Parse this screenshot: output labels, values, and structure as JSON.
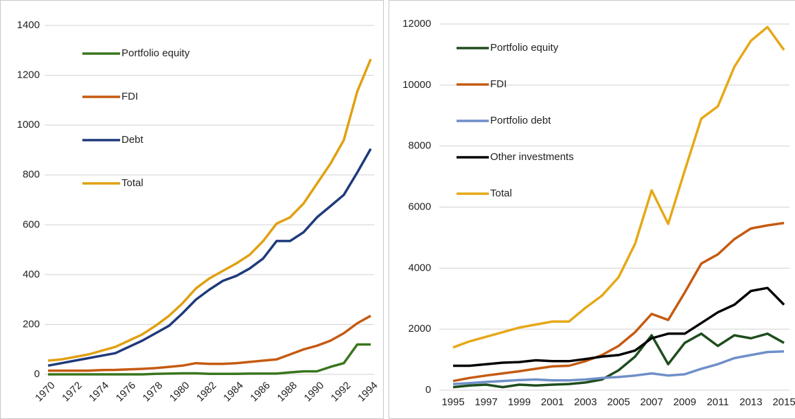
{
  "chart_data": [
    {
      "type": "line",
      "x": [
        1970,
        1971,
        1972,
        1973,
        1974,
        1975,
        1976,
        1977,
        1978,
        1979,
        1980,
        1981,
        1982,
        1983,
        1984,
        1985,
        1986,
        1987,
        1988,
        1989,
        1990,
        1991,
        1992,
        1993,
        1994
      ],
      "xlim": [
        1970,
        1994
      ],
      "xticks": [
        1970,
        1972,
        1974,
        1976,
        1978,
        1980,
        1982,
        1984,
        1986,
        1988,
        1990,
        1992,
        1994
      ],
      "ylim": [
        0,
        1400
      ],
      "yticks": [
        0,
        200,
        400,
        600,
        800,
        1000,
        1200,
        1400
      ],
      "grid": true,
      "legend": "upper left",
      "series": [
        {
          "name": "Portfolio equity",
          "color": "#38761d",
          "values": [
            0,
            0,
            0,
            0,
            0,
            0,
            0,
            0,
            2,
            3,
            4,
            4,
            2,
            2,
            2,
            3,
            3,
            3,
            8,
            12,
            12,
            30,
            45,
            120,
            120
          ]
        },
        {
          "name": "FDI",
          "color": "#c55a11",
          "values": [
            15,
            15,
            15,
            15,
            17,
            18,
            20,
            22,
            25,
            30,
            35,
            45,
            42,
            42,
            45,
            50,
            55,
            60,
            80,
            100,
            115,
            135,
            165,
            205,
            235
          ]
        },
        {
          "name": "Debt",
          "color": "#1f3a7a",
          "values": [
            35,
            45,
            55,
            65,
            75,
            85,
            110,
            135,
            165,
            195,
            245,
            300,
            340,
            375,
            395,
            425,
            465,
            535,
            535,
            570,
            630,
            675,
            720,
            810,
            905
          ]
        },
        {
          "name": "Total",
          "color": "#e0a010",
          "values": [
            55,
            60,
            70,
            80,
            95,
            110,
            135,
            160,
            195,
            235,
            285,
            345,
            385,
            415,
            445,
            480,
            535,
            605,
            630,
            685,
            765,
            845,
            940,
            1135,
            1265
          ]
        }
      ]
    },
    {
      "type": "line",
      "x": [
        1995,
        1996,
        1997,
        1998,
        1999,
        2000,
        2001,
        2002,
        2003,
        2004,
        2005,
        2006,
        2007,
        2008,
        2009,
        2010,
        2011,
        2012,
        2013,
        2014,
        2015
      ],
      "xlim": [
        1995,
        2015
      ],
      "xticks": [
        1995,
        1997,
        1999,
        2001,
        2003,
        2005,
        2007,
        2009,
        2011,
        2013,
        2015
      ],
      "ylim": [
        0,
        12000
      ],
      "yticks": [
        0,
        2000,
        4000,
        6000,
        8000,
        10000,
        12000
      ],
      "grid": true,
      "legend": "upper left",
      "series": [
        {
          "name": "Portfolio equity",
          "color": "#1e4d1e",
          "values": [
            100,
            150,
            180,
            100,
            180,
            150,
            180,
            200,
            250,
            350,
            650,
            1100,
            1800,
            850,
            1550,
            1850,
            1450,
            1800,
            1700,
            1850,
            1550
          ]
        },
        {
          "name": "FDI",
          "color": "#c55a11",
          "values": [
            300,
            400,
            480,
            550,
            620,
            700,
            780,
            800,
            950,
            1150,
            1450,
            1900,
            2500,
            2300,
            3200,
            4150,
            4450,
            4950,
            5300,
            5400,
            5480
          ]
        },
        {
          "name": "Portfolio debt",
          "color": "#6f8fc8",
          "values": [
            200,
            230,
            270,
            300,
            330,
            350,
            320,
            320,
            350,
            400,
            430,
            480,
            550,
            480,
            520,
            700,
            850,
            1050,
            1150,
            1250,
            1270
          ]
        },
        {
          "name": "Other investments",
          "color": "#000000",
          "values": [
            800,
            800,
            850,
            900,
            920,
            980,
            950,
            950,
            1020,
            1100,
            1150,
            1300,
            1700,
            1850,
            1850,
            2200,
            2550,
            2800,
            3250,
            3350,
            2800
          ]
        },
        {
          "name": "Total",
          "color": "#e6a817",
          "values": [
            1400,
            1600,
            1750,
            1900,
            2050,
            2150,
            2250,
            2250,
            2700,
            3100,
            3700,
            4800,
            6550,
            5450,
            7200,
            8900,
            9300,
            10600,
            11450,
            11900,
            11150
          ]
        }
      ]
    }
  ]
}
